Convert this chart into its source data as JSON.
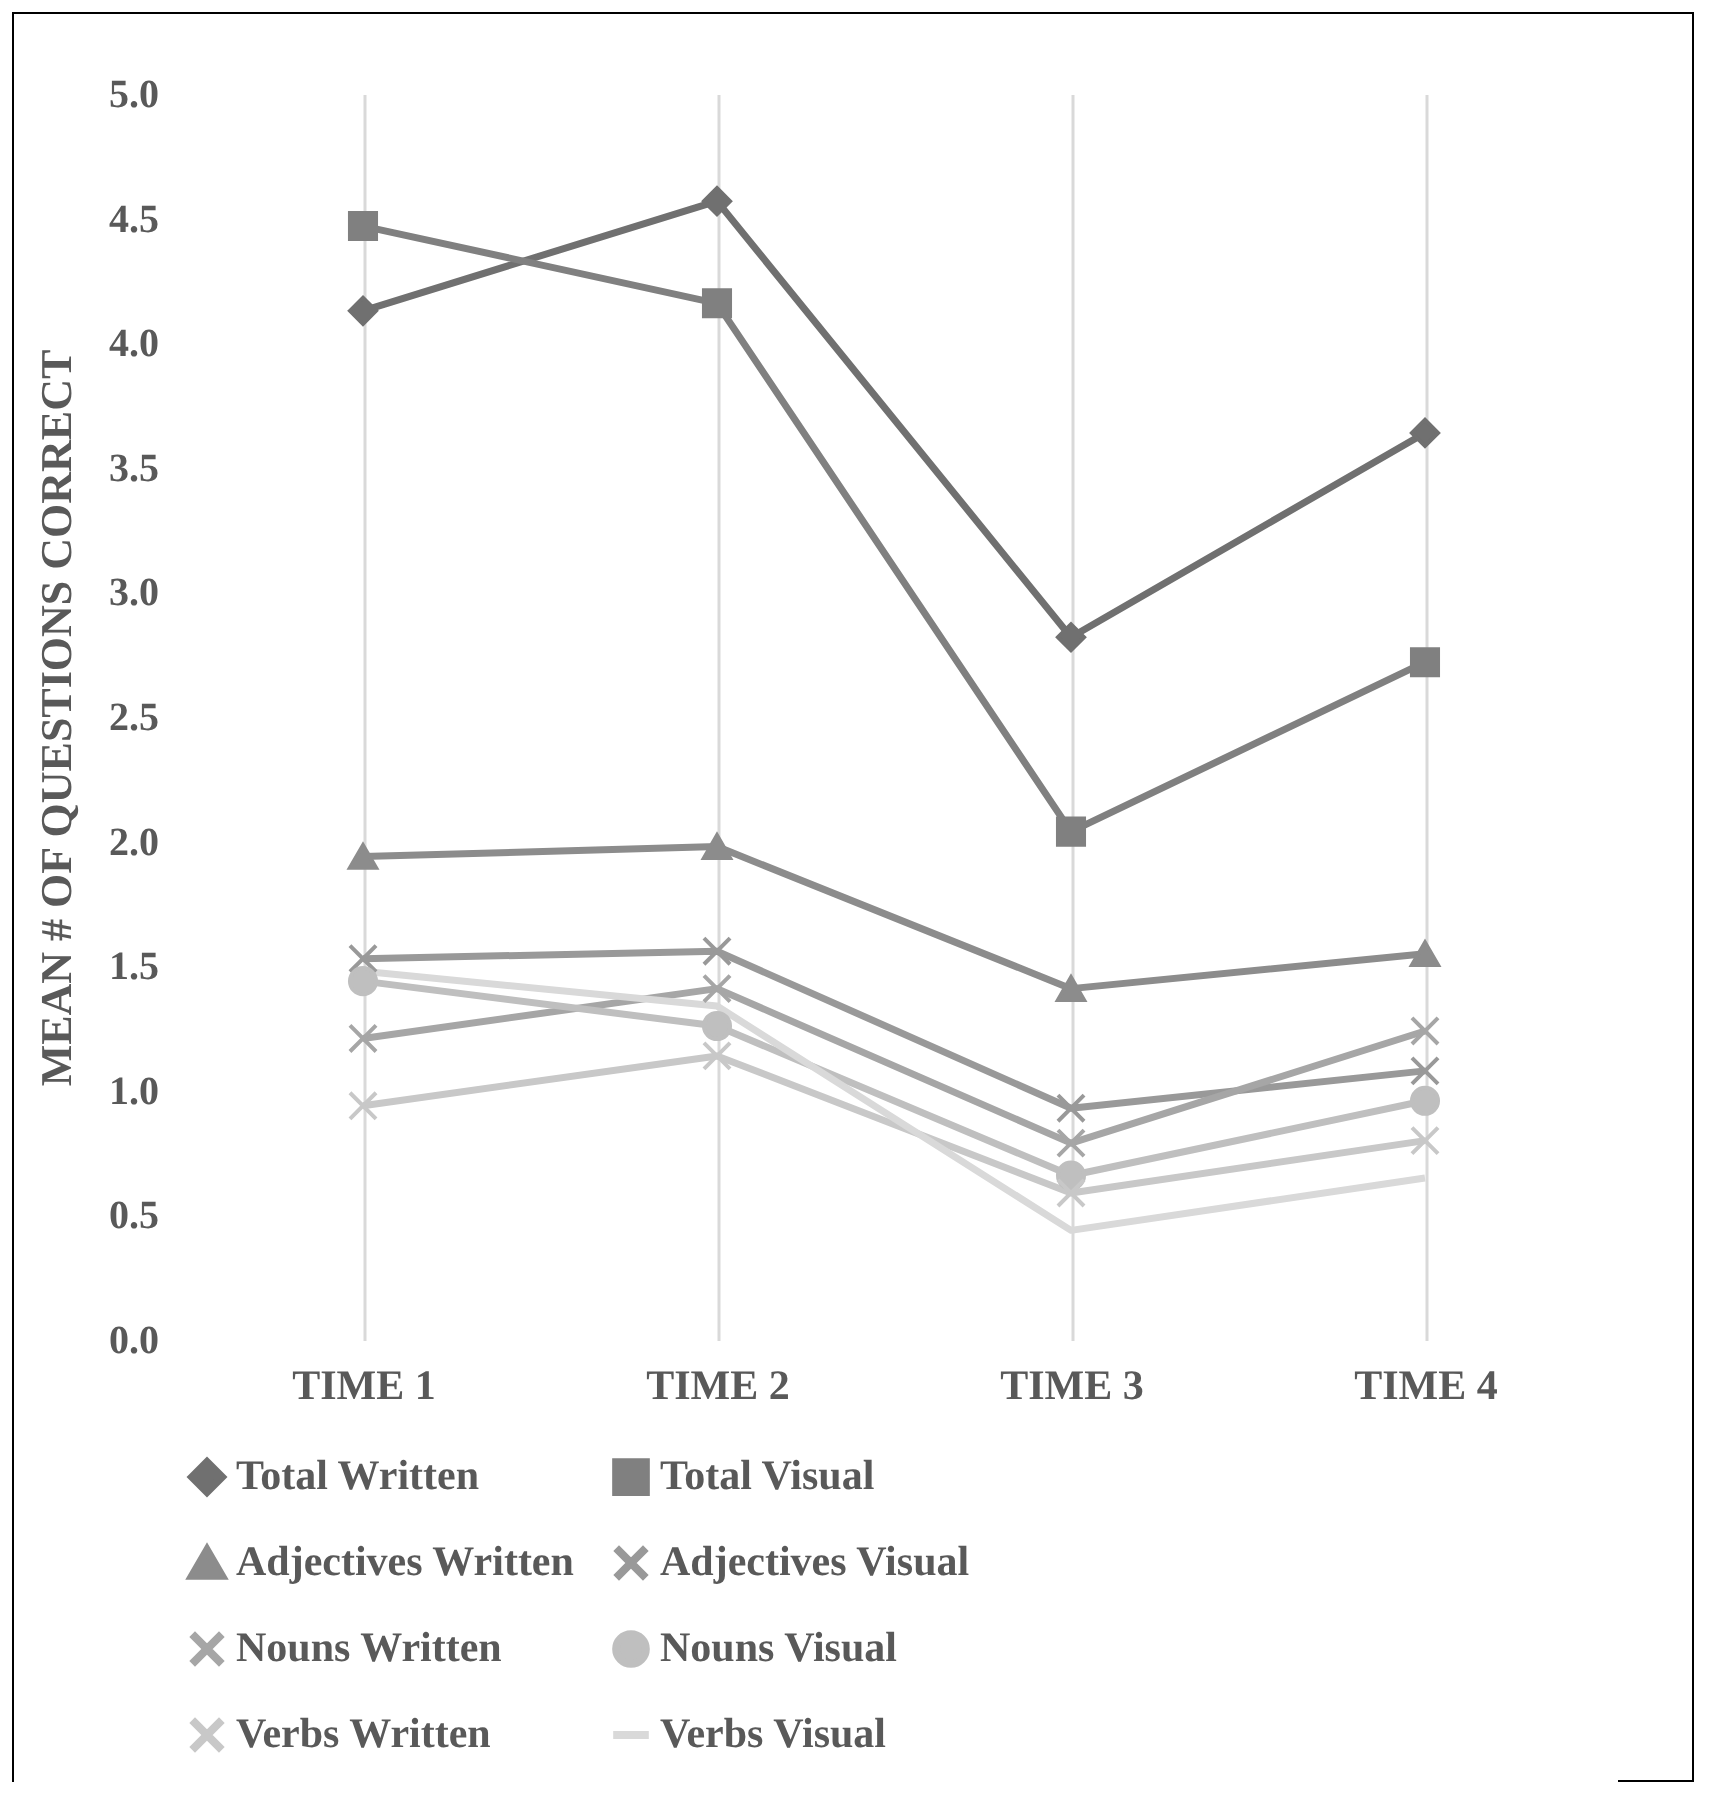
{
  "chart_data": {
    "type": "line",
    "ylabel": "MEAN # OF QUESTIONS CORRECT",
    "categories": [
      "TIME 1",
      "TIME 2",
      "TIME 3",
      "TIME 4"
    ],
    "ylim": [
      0,
      5
    ],
    "yticks": [
      {
        "value": 0,
        "label": "0.0"
      },
      0.5,
      {
        "value": 1,
        "label": "1.0"
      },
      1.5,
      {
        "value": 2,
        "label": "2.0"
      },
      2.5,
      {
        "value": 3,
        "label": "3.0"
      },
      3.5,
      {
        "value": 4,
        "label": "4.0"
      },
      4.5,
      {
        "value": 5,
        "label": "5.0"
      }
    ],
    "grid": "x",
    "legend": "bottom",
    "series": [
      {
        "name": "Total Written",
        "color": "#707070",
        "marker": "diamond",
        "values": [
          4.13,
          4.57,
          2.82,
          3.64
        ]
      },
      {
        "name": "Total Visual",
        "color": "#808080",
        "marker": "square",
        "values": [
          4.47,
          4.16,
          2.04,
          2.72
        ]
      },
      {
        "name": "Adjectives Written",
        "color": "#8c8c8c",
        "marker": "triangle",
        "values": [
          1.94,
          1.98,
          1.41,
          1.55
        ]
      },
      {
        "name": "Adjectives Visual",
        "color": "#999999",
        "marker": "cross",
        "values": [
          1.53,
          1.56,
          0.93,
          1.08
        ]
      },
      {
        "name": "Nouns Written",
        "color": "#a6a6a6",
        "marker": "cross",
        "values": [
          1.21,
          1.41,
          0.79,
          1.24
        ]
      },
      {
        "name": "Nouns Visual",
        "color": "#bfbfbf",
        "marker": "circle",
        "values": [
          1.44,
          1.26,
          0.66,
          0.96
        ]
      },
      {
        "name": "Verbs Written",
        "color": "#c8c8c8",
        "marker": "cross",
        "values": [
          0.94,
          1.14,
          0.59,
          0.8
        ]
      },
      {
        "name": "Verbs Visual",
        "color": "#d9d9d9",
        "marker": "none",
        "values": [
          1.48,
          1.34,
          0.44,
          0.65
        ]
      }
    ]
  }
}
